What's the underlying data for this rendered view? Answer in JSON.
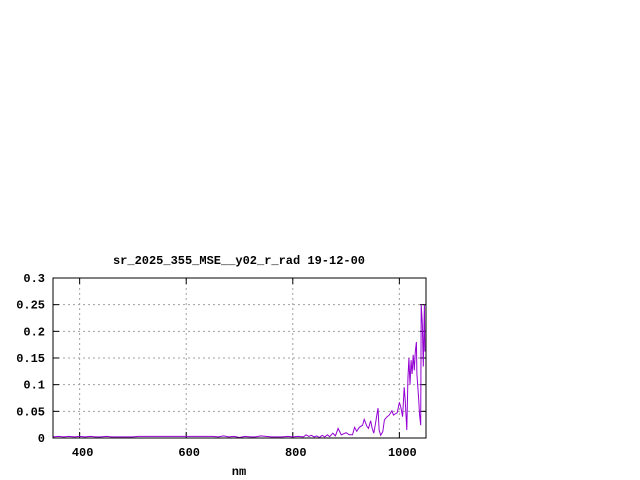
{
  "chart_data": {
    "type": "line",
    "title": "sr_2025_355_MSE__y02_r_rad 19-12-00",
    "xlabel": "nm",
    "ylabel": "",
    "xlim": [
      350,
      1050
    ],
    "ylim": [
      0,
      0.3
    ],
    "grid": true,
    "x_ticks": [
      400,
      600,
      800,
      1000
    ],
    "x_tick_labels": [
      "400",
      "600",
      "800",
      "1000"
    ],
    "y_ticks": [
      0,
      0.05,
      0.1,
      0.15,
      0.2,
      0.25,
      0.3
    ],
    "y_tick_labels": [
      "0",
      "0.05",
      "0.1",
      "0.15",
      "0.2",
      "0.25",
      "0.3"
    ],
    "line_color": "#9400d3",
    "grid_color": "#a0a0a0",
    "series": [
      {
        "x": [
          350,
          360,
          370,
          380,
          390,
          400,
          410,
          420,
          430,
          440,
          450,
          460,
          470,
          480,
          490,
          500,
          510,
          520,
          530,
          540,
          550,
          560,
          570,
          580,
          590,
          600,
          610,
          620,
          630,
          640,
          650,
          660,
          670,
          680,
          690,
          700,
          710,
          720,
          730,
          740,
          750,
          760,
          770,
          780,
          790,
          800,
          810,
          820,
          825,
          830,
          835,
          840,
          845,
          850,
          855,
          860,
          865,
          869,
          875,
          880,
          885,
          891,
          900,
          906,
          912,
          916,
          920,
          925,
          931,
          934,
          939,
          942,
          946,
          949,
          952,
          955,
          958,
          960,
          962,
          965,
          969,
          972,
          976,
          981,
          986,
          989,
          992,
          996,
          1000,
          1003,
          1006,
          1009,
          1011,
          1014,
          1016,
          1018,
          1020,
          1022,
          1024,
          1026,
          1028,
          1030,
          1032,
          1033,
          1036,
          1038,
          1040,
          1041,
          1043,
          1045,
          1047,
          1048
        ],
        "y": [
          0.002,
          0.003,
          0.002,
          0.003,
          0.002,
          0.003,
          0.002,
          0.003,
          0.002,
          0.002,
          0.003,
          0.002,
          0.002,
          0.002,
          0.002,
          0.002,
          0.003,
          0.003,
          0.003,
          0.003,
          0.003,
          0.003,
          0.003,
          0.003,
          0.003,
          0.003,
          0.003,
          0.003,
          0.003,
          0.003,
          0.003,
          0.002,
          0.004,
          0.002,
          0.003,
          0.001,
          0.003,
          0.002,
          0.002,
          0.004,
          0.003,
          0.002,
          0.002,
          0.002,
          0.003,
          0.002,
          0.003,
          0.002,
          0.006,
          0.003,
          0.005,
          0.002,
          0.004,
          0.001,
          0.005,
          0.002,
          0.006,
          0.0025,
          0.009,
          0.004,
          0.018,
          0.006,
          0.01,
          0.006,
          0.006,
          0.02,
          0.0125,
          0.02,
          0.024,
          0.035,
          0.022,
          0.018,
          0.0325,
          0.018,
          0.009,
          0.026,
          0.045,
          0.056,
          0.015,
          0.005,
          0.012,
          0.034,
          0.039,
          0.043,
          0.051,
          0.043,
          0.045,
          0.0475,
          0.067,
          0.056,
          0.04,
          0.095,
          0.071,
          0.015,
          0.11,
          0.15,
          0.1,
          0.146,
          0.12,
          0.156,
          0.127,
          0.162,
          0.18,
          0.12,
          0.078,
          0.043,
          0.024,
          0.25,
          0.215,
          0.134,
          0.25,
          0.162
        ]
      }
    ]
  }
}
